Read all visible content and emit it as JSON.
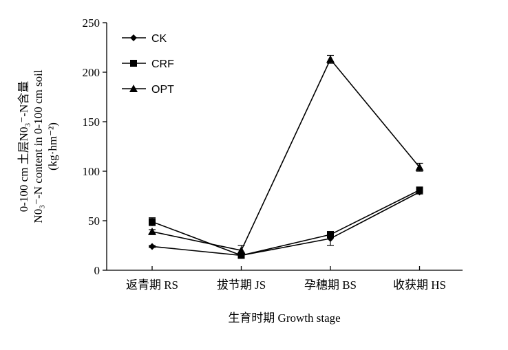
{
  "chart_data": {
    "type": "line",
    "categories": [
      "返青期 RS",
      "拔节期 JS",
      "孕穗期 BS",
      "收获期 HS"
    ],
    "series": [
      {
        "name": "CK",
        "marker": "diamond",
        "values": [
          24,
          15,
          32,
          79
        ],
        "errors": [
          1,
          1,
          7,
          2
        ]
      },
      {
        "name": "CRF",
        "marker": "square",
        "values": [
          49,
          15,
          36,
          81
        ],
        "errors": [
          4,
          1,
          3,
          3
        ]
      },
      {
        "name": "OPT",
        "marker": "triangle",
        "values": [
          39,
          20,
          213,
          104
        ],
        "errors": [
          2,
          5,
          4,
          4
        ]
      }
    ],
    "xlabel": "生育时期 Growth stage",
    "ylabel_lines": [
      "0-100 cm 土层N0₃⁻-N含量",
      "N0₃⁻-N content in 0-100 cm soil",
      "(kg·hm⁻²)"
    ],
    "ylim": [
      0,
      250
    ],
    "yticks": [
      0,
      50,
      100,
      150,
      200,
      250
    ],
    "legend_position": "top-left",
    "grid": false,
    "colors": {
      "line": "#000000"
    }
  }
}
